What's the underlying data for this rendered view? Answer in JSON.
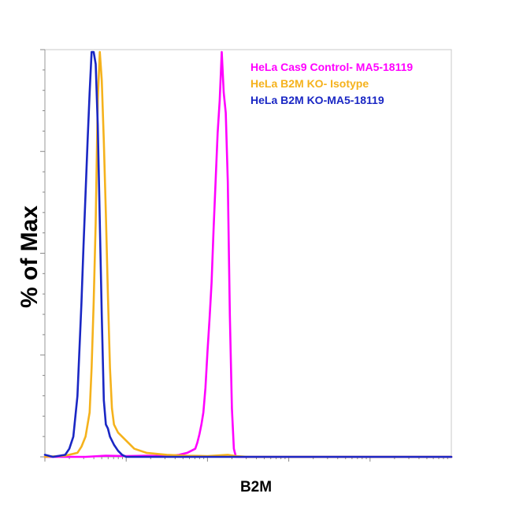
{
  "chart_data": {
    "type": "line",
    "title": "",
    "xlabel": "B2M",
    "ylabel": "% of Max",
    "xscale": "log",
    "ylim": [
      0,
      100
    ],
    "grid": false,
    "legend_position": "top-right",
    "series": [
      {
        "name": "HeLa Cas9 Control- MA5-18119",
        "color": "#ff00ff",
        "points": [
          [
            0.0,
            0
          ],
          [
            0.1,
            0
          ],
          [
            0.15,
            0.3
          ],
          [
            0.2,
            0.2
          ],
          [
            0.25,
            0.3
          ],
          [
            0.3,
            0.2
          ],
          [
            0.33,
            0.5
          ],
          [
            0.35,
            1.0
          ],
          [
            0.36,
            1.5
          ],
          [
            0.37,
            2.0
          ],
          [
            0.375,
            3.5
          ],
          [
            0.38,
            5.5
          ],
          [
            0.385,
            8.0
          ],
          [
            0.39,
            11
          ],
          [
            0.395,
            17
          ],
          [
            0.4,
            26
          ],
          [
            0.405,
            34
          ],
          [
            0.41,
            43
          ],
          [
            0.415,
            56
          ],
          [
            0.42,
            68
          ],
          [
            0.425,
            80
          ],
          [
            0.43,
            88
          ],
          [
            0.435,
            100
          ],
          [
            0.44,
            90
          ],
          [
            0.445,
            85
          ],
          [
            0.45,
            68
          ],
          [
            0.455,
            35
          ],
          [
            0.46,
            12
          ],
          [
            0.465,
            2
          ],
          [
            0.47,
            0
          ],
          [
            1.0,
            0
          ]
        ]
      },
      {
        "name": "HeLa B2M KO- Isotype",
        "color": "#f5b21c",
        "points": [
          [
            0.0,
            0
          ],
          [
            0.05,
            0.3
          ],
          [
            0.08,
            1.0
          ],
          [
            0.09,
            2.5
          ],
          [
            0.1,
            5
          ],
          [
            0.11,
            11
          ],
          [
            0.115,
            22
          ],
          [
            0.12,
            38
          ],
          [
            0.125,
            58
          ],
          [
            0.13,
            88
          ],
          [
            0.135,
            100
          ],
          [
            0.14,
            93
          ],
          [
            0.145,
            78
          ],
          [
            0.15,
            60
          ],
          [
            0.155,
            40
          ],
          [
            0.16,
            22
          ],
          [
            0.165,
            12
          ],
          [
            0.17,
            8
          ],
          [
            0.18,
            6
          ],
          [
            0.2,
            4
          ],
          [
            0.22,
            2
          ],
          [
            0.25,
            1.0
          ],
          [
            0.3,
            0.5
          ],
          [
            0.35,
            0.3
          ],
          [
            0.4,
            0.2
          ],
          [
            0.45,
            0.5
          ],
          [
            0.47,
            0.2
          ],
          [
            0.5,
            0
          ],
          [
            1.0,
            0
          ]
        ]
      },
      {
        "name": "HeLa B2M KO-MA5-18119",
        "color": "#1a27c4",
        "points": [
          [
            0.0,
            0.5
          ],
          [
            0.02,
            0
          ],
          [
            0.05,
            0.5
          ],
          [
            0.06,
            2
          ],
          [
            0.07,
            5
          ],
          [
            0.08,
            15
          ],
          [
            0.09,
            38
          ],
          [
            0.095,
            52
          ],
          [
            0.1,
            65
          ],
          [
            0.105,
            78
          ],
          [
            0.11,
            90
          ],
          [
            0.115,
            100
          ],
          [
            0.12,
            100
          ],
          [
            0.125,
            97
          ],
          [
            0.13,
            82
          ],
          [
            0.135,
            58
          ],
          [
            0.14,
            35
          ],
          [
            0.145,
            14
          ],
          [
            0.15,
            8
          ],
          [
            0.155,
            7
          ],
          [
            0.16,
            5
          ],
          [
            0.17,
            3
          ],
          [
            0.18,
            1.5
          ],
          [
            0.19,
            0.5
          ],
          [
            0.2,
            0
          ],
          [
            1.0,
            0
          ]
        ]
      }
    ]
  }
}
